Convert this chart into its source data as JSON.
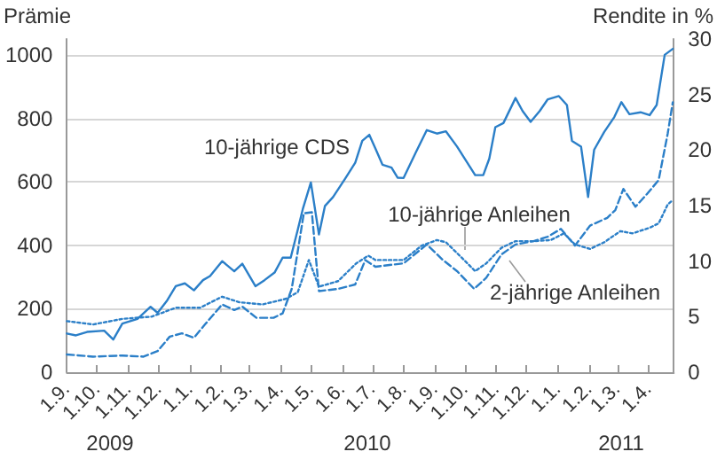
{
  "chart_data": {
    "type": "line",
    "ylabel": "Prämie",
    "y2label": "Rendite in %",
    "xlim": [
      "2009-09-01",
      "2011-04-26"
    ],
    "xticks": [
      {
        "value": "2009-09-01",
        "label": "1.9."
      },
      {
        "value": "2009-10-01",
        "label": "1.10."
      },
      {
        "value": "2009-11-01",
        "label": "1.11."
      },
      {
        "value": "2009-12-01",
        "label": "1.12."
      },
      {
        "value": "2010-01-01",
        "label": "1.1."
      },
      {
        "value": "2010-02-01",
        "label": "1.2."
      },
      {
        "value": "2010-03-01",
        "label": "1.3."
      },
      {
        "value": "2010-04-01",
        "label": "1.4."
      },
      {
        "value": "2010-05-01",
        "label": "1.5."
      },
      {
        "value": "2010-06-01",
        "label": "1.6."
      },
      {
        "value": "2010-07-01",
        "label": "1.7."
      },
      {
        "value": "2010-08-01",
        "label": "1.8."
      },
      {
        "value": "2010-09-01",
        "label": "1.9."
      },
      {
        "value": "2010-10-01",
        "label": "1.10."
      },
      {
        "value": "2010-11-01",
        "label": "1.11."
      },
      {
        "value": "2010-12-01",
        "label": "1.12."
      },
      {
        "value": "2011-01-01",
        "label": "1.1."
      },
      {
        "value": "2011-02-01",
        "label": "1.2."
      },
      {
        "value": "2011-03-01",
        "label": "1.3."
      },
      {
        "value": "2011-04-01",
        "label": "1.4."
      }
    ],
    "ylim": [
      0,
      1050
    ],
    "yticks": [
      0,
      200,
      400,
      600,
      800,
      1000
    ],
    "y2lim": [
      0,
      30
    ],
    "y2ticks": [
      0,
      5,
      10,
      15,
      20,
      25,
      30
    ],
    "grid": "y",
    "annotations": [
      "2009",
      "2010",
      "2011"
    ],
    "series": [
      {
        "name": "10-jährige CDS",
        "color": "#2b7fc8",
        "line_style": "solid",
        "x": [
          "2009-09-01",
          "2009-09-10",
          "2009-09-21",
          "2009-10-08",
          "2009-10-17",
          "2009-10-26",
          "2009-11-10",
          "2009-11-23",
          "2009-11-30",
          "2009-12-09",
          "2009-12-18",
          "2009-12-27",
          "2010-01-05",
          "2010-01-14",
          "2010-01-21",
          "2010-02-02",
          "2010-02-14",
          "2010-02-22",
          "2010-03-07",
          "2010-03-16",
          "2010-03-26",
          "2010-04-03",
          "2010-04-11",
          "2010-04-18",
          "2010-04-23",
          "2010-05-01",
          "2010-05-09",
          "2010-05-15",
          "2010-05-23",
          "2010-06-04",
          "2010-06-14",
          "2010-06-21",
          "2010-06-28",
          "2010-07-04",
          "2010-07-11",
          "2010-07-20",
          "2010-07-26",
          "2010-08-01",
          "2010-08-13",
          "2010-08-24",
          "2010-09-03",
          "2010-09-12",
          "2010-09-23",
          "2010-10-05",
          "2010-10-11",
          "2010-10-19",
          "2010-10-25",
          "2010-10-31",
          "2010-11-08",
          "2010-11-20",
          "2010-11-27",
          "2010-12-05",
          "2010-12-14",
          "2010-12-22",
          "2011-01-02",
          "2011-01-10",
          "2011-01-15",
          "2011-01-24",
          "2011-01-31",
          "2011-02-06",
          "2011-02-16",
          "2011-02-26",
          "2011-03-05",
          "2011-03-13",
          "2011-03-24",
          "2011-04-02",
          "2011-04-09",
          "2011-04-17",
          "2011-04-25"
        ],
        "values": [
          122,
          116,
          127,
          131,
          103,
          153,
          168,
          206,
          187,
          224,
          271,
          280,
          258,
          290,
          303,
          350,
          318,
          342,
          271,
          290,
          314,
          361,
          361,
          449,
          514,
          598,
          434,
          524,
          552,
          610,
          660,
          729,
          748,
          705,
          654,
          645,
          613,
          612,
          692,
          763,
          752,
          759,
          711,
          651,
          621,
          621,
          673,
          772,
          785,
          864,
          823,
          789,
          823,
          860,
          870,
          842,
          729,
          711,
          552,
          701,
          757,
          804,
          851,
          813,
          819,
          810,
          842,
          1000,
          1019
        ]
      },
      {
        "name": "10-jährige Anleihen",
        "color": "#2b7fc8",
        "line_style": "dotted",
        "axis": "y2",
        "x": [
          "2009-09-01",
          "2009-09-27",
          "2009-10-26",
          "2009-11-24",
          "2009-12-18",
          "2010-01-11",
          "2010-02-02",
          "2010-02-19",
          "2010-03-14",
          "2010-04-06",
          "2010-04-18",
          "2010-04-29",
          "2010-05-09",
          "2010-05-28",
          "2010-06-15",
          "2010-06-27",
          "2010-07-04",
          "2010-07-20",
          "2010-08-01",
          "2010-08-19",
          "2010-09-03",
          "2010-09-12",
          "2010-09-30",
          "2010-10-11",
          "2010-10-22",
          "2010-11-06",
          "2010-11-20",
          "2010-12-08",
          "2010-12-25",
          "2011-01-07",
          "2011-01-18",
          "2011-02-02",
          "2011-02-16",
          "2011-03-04",
          "2011-03-16",
          "2011-04-02",
          "2011-04-11",
          "2011-04-20",
          "2011-04-25"
        ],
        "values": [
          4.6,
          4.3,
          4.8,
          5.0,
          5.8,
          5.8,
          6.8,
          6.3,
          6.1,
          6.6,
          7.2,
          10.1,
          7.7,
          8.2,
          9.8,
          10.5,
          10.1,
          10.1,
          10.1,
          11.4,
          11.9,
          11.7,
          10.1,
          9.1,
          9.8,
          11.2,
          11.8,
          11.8,
          11.9,
          12.5,
          11.5,
          11.1,
          11.7,
          12.7,
          12.5,
          13.0,
          13.4,
          15.1,
          15.5
        ]
      },
      {
        "name": "2-jährige Anleihen",
        "color": "#2b7fc8",
        "line_style": "dashed",
        "axis": "y2",
        "x": [
          "2009-09-01",
          "2009-09-27",
          "2009-10-26",
          "2009-11-16",
          "2009-11-30",
          "2009-12-12",
          "2009-12-24",
          "2010-01-05",
          "2010-01-16",
          "2010-02-02",
          "2010-02-14",
          "2010-02-22",
          "2010-03-08",
          "2010-03-25",
          "2010-04-03",
          "2010-04-12",
          "2010-04-24",
          "2010-05-02",
          "2010-05-09",
          "2010-05-28",
          "2010-06-14",
          "2010-06-24",
          "2010-07-04",
          "2010-08-01",
          "2010-08-24",
          "2010-09-09",
          "2010-09-23",
          "2010-10-10",
          "2010-10-22",
          "2010-11-06",
          "2010-11-20",
          "2010-12-08",
          "2010-12-22",
          "2011-01-04",
          "2011-01-18",
          "2011-02-02",
          "2011-02-19",
          "2011-02-27",
          "2011-03-07",
          "2011-03-19",
          "2011-03-30",
          "2011-04-11",
          "2011-04-20",
          "2011-04-25"
        ],
        "values": [
          1.6,
          1.4,
          1.5,
          1.4,
          1.9,
          3.2,
          3.5,
          3.1,
          4.3,
          6.1,
          5.6,
          5.9,
          4.9,
          4.9,
          5.3,
          7.5,
          14.3,
          14.4,
          7.3,
          7.5,
          7.9,
          10.1,
          9.5,
          9.8,
          11.5,
          10.1,
          9.1,
          7.5,
          8.5,
          10.6,
          11.5,
          11.8,
          12.2,
          12.9,
          11.4,
          13.2,
          13.9,
          14.6,
          16.5,
          14.9,
          16.0,
          17.3,
          21.5,
          24.3
        ]
      }
    ]
  }
}
